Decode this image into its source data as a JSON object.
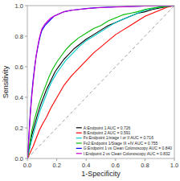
{
  "chart_data": {
    "type": "line",
    "xlabel": "1-Specificity",
    "ylabel": "Sensitivity",
    "xlim": [
      0.0,
      1.0
    ],
    "ylim": [
      0.0,
      1.0
    ],
    "xticks": [
      {
        "value": 0.0,
        "label": "0.0"
      },
      0.2,
      0.4,
      0.6,
      0.8,
      {
        "value": 1.0,
        "label": "1.0"
      }
    ],
    "yticks": [
      {
        "value": 0.0,
        "label": "0.0"
      },
      0.2,
      0.4,
      0.6,
      0.8,
      {
        "value": 1.0,
        "label": "1.0"
      }
    ],
    "grid": false,
    "legend": "lower right",
    "series": [
      {
        "name": "A:Endpoint 1 AUC = 0.726",
        "color": "#000000",
        "x": [
          0,
          0.01,
          0.02,
          0.03,
          0.05,
          0.07,
          0.09,
          0.11,
          0.13,
          0.15,
          0.17,
          0.19,
          0.22,
          0.25,
          0.28,
          0.32,
          0.36,
          0.4,
          0.45,
          0.5,
          0.55,
          0.6,
          0.65,
          0.7,
          0.75,
          0.8,
          0.85,
          0.9,
          0.95,
          1.0
        ],
        "values": [
          0,
          0.05,
          0.1,
          0.15,
          0.22,
          0.29,
          0.35,
          0.4,
          0.45,
          0.49,
          0.53,
          0.57,
          0.61,
          0.65,
          0.68,
          0.72,
          0.75,
          0.78,
          0.81,
          0.84,
          0.87,
          0.89,
          0.91,
          0.93,
          0.95,
          0.96,
          0.975,
          0.985,
          0.993,
          1.0
        ]
      },
      {
        "name": "B:Endpoint 2 AUC = 0.591",
        "color": "#ff0000",
        "x": [
          0,
          0.02,
          0.04,
          0.06,
          0.08,
          0.1,
          0.13,
          0.16,
          0.19,
          0.22,
          0.25,
          0.3,
          0.35,
          0.4,
          0.45,
          0.5,
          0.55,
          0.6,
          0.65,
          0.7,
          0.75,
          0.8,
          0.85,
          0.9,
          0.95,
          1.0
        ],
        "values": [
          0,
          0.04,
          0.08,
          0.13,
          0.18,
          0.22,
          0.27,
          0.33,
          0.38,
          0.43,
          0.48,
          0.54,
          0.59,
          0.64,
          0.69,
          0.73,
          0.77,
          0.81,
          0.84,
          0.87,
          0.9,
          0.93,
          0.95,
          0.97,
          0.99,
          1.0
        ]
      },
      {
        "name": "Fx:Endpoint 1/stage I or II AUC = 0.716",
        "color": "#00cccc",
        "x": [
          0,
          0.01,
          0.02,
          0.03,
          0.05,
          0.07,
          0.09,
          0.11,
          0.13,
          0.15,
          0.17,
          0.2,
          0.23,
          0.26,
          0.3,
          0.35,
          0.4,
          0.45,
          0.5,
          0.55,
          0.6,
          0.65,
          0.7,
          0.75,
          0.8,
          0.85,
          0.9,
          0.95,
          1.0
        ],
        "values": [
          0,
          0.04,
          0.08,
          0.12,
          0.19,
          0.26,
          0.32,
          0.37,
          0.42,
          0.47,
          0.51,
          0.56,
          0.6,
          0.64,
          0.68,
          0.73,
          0.77,
          0.8,
          0.83,
          0.86,
          0.89,
          0.91,
          0.93,
          0.95,
          0.97,
          0.98,
          0.99,
          0.995,
          1.0
        ]
      },
      {
        "name": "Fx2:Endpoint 1/Stage III +IV AUC = 0.755",
        "color": "#00bb00",
        "x": [
          0,
          0.01,
          0.02,
          0.03,
          0.05,
          0.07,
          0.09,
          0.11,
          0.13,
          0.15,
          0.17,
          0.2,
          0.23,
          0.26,
          0.3,
          0.35,
          0.4,
          0.45,
          0.5,
          0.55,
          0.6,
          0.65,
          0.7,
          0.75,
          0.8,
          0.85,
          0.9,
          0.95,
          1.0
        ],
        "values": [
          0,
          0.06,
          0.12,
          0.18,
          0.26,
          0.33,
          0.39,
          0.44,
          0.49,
          0.54,
          0.58,
          0.63,
          0.67,
          0.71,
          0.75,
          0.79,
          0.82,
          0.85,
          0.87,
          0.9,
          0.92,
          0.94,
          0.95,
          0.96,
          0.975,
          0.984,
          0.99,
          0.995,
          1.0
        ]
      },
      {
        "name": "G:Endpoint 1 vs Clean Colonoscopy AUC = 0.840",
        "color": "#0000ff",
        "x": [
          0,
          0.005,
          0.01,
          0.015,
          0.02,
          0.03,
          0.04,
          0.05,
          0.06,
          0.07,
          0.08,
          0.09,
          0.1,
          0.12,
          0.14,
          0.16,
          0.18,
          0.2,
          0.25,
          0.3,
          0.35,
          0.4,
          0.45,
          0.5,
          0.6,
          0.7,
          0.8,
          0.9,
          1.0
        ],
        "values": [
          0,
          0.06,
          0.14,
          0.22,
          0.3,
          0.42,
          0.52,
          0.6,
          0.67,
          0.72,
          0.77,
          0.81,
          0.84,
          0.87,
          0.89,
          0.91,
          0.93,
          0.94,
          0.96,
          0.97,
          0.975,
          0.981,
          0.985,
          0.988,
          0.992,
          0.995,
          0.997,
          0.999,
          1.0
        ]
      },
      {
        "name": "I:Endpoint 2 vs Clean Colonoscopy AUC = 0.832",
        "color": "#cc00cc",
        "x": [
          0,
          0.005,
          0.01,
          0.015,
          0.02,
          0.03,
          0.04,
          0.05,
          0.06,
          0.07,
          0.08,
          0.09,
          0.1,
          0.12,
          0.14,
          0.16,
          0.18,
          0.2,
          0.25,
          0.3,
          0.35,
          0.4,
          0.45,
          0.5,
          0.6,
          0.7,
          0.8,
          0.9,
          1.0
        ],
        "values": [
          0,
          0.05,
          0.12,
          0.2,
          0.28,
          0.4,
          0.5,
          0.59,
          0.67,
          0.73,
          0.78,
          0.82,
          0.85,
          0.88,
          0.9,
          0.92,
          0.93,
          0.94,
          0.96,
          0.97,
          0.975,
          0.98,
          0.984,
          0.987,
          0.991,
          0.994,
          0.997,
          0.999,
          1.0
        ]
      }
    ]
  }
}
